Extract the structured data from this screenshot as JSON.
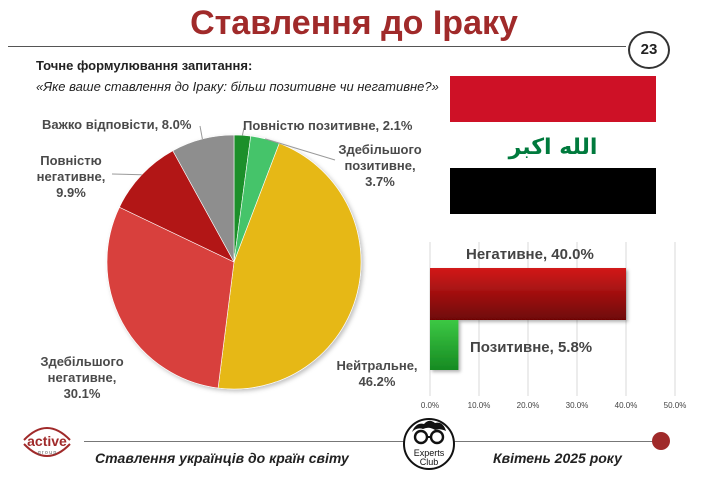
{
  "title": "Ставлення до Іраку",
  "page_number": "23",
  "question": {
    "label": "Точне формулювання запитання:",
    "text": "«Яке ваше ставлення до Іраку: більш позитивне чи негативне?»"
  },
  "flag": {
    "script": "الله اكبر",
    "colors": {
      "top": "#ce1126",
      "middle": "#ffffff",
      "bottom": "#000000",
      "script": "#007a3d"
    }
  },
  "chart_data": [
    {
      "type": "pie",
      "slices": [
        {
          "name": "Повністю позитивне",
          "value": 2.1,
          "label": "Повністю позитивне, 2.1%",
          "color": "#1f8f2b"
        },
        {
          "name": "Здебільшого позитивне",
          "value": 3.7,
          "label_lines": [
            "Здебільшого",
            "позитивне,",
            "3.7%"
          ],
          "color": "#45c46a"
        },
        {
          "name": "Нейтральне",
          "value": 46.2,
          "label_lines": [
            "Нейтральне,",
            "46.2%"
          ],
          "color": "#e6b818"
        },
        {
          "name": "Здебільшого негативне",
          "value": 30.1,
          "label_lines": [
            "Здебільшого",
            "негативне,",
            "30.1%"
          ],
          "color": "#d8403d"
        },
        {
          "name": "Повністю негативне",
          "value": 9.9,
          "label_lines": [
            "Повністю",
            "негативне,",
            "9.9%"
          ],
          "color": "#b21515"
        },
        {
          "name": "Важко відповісти",
          "value": 8.0,
          "label": "Важко відповісти, 8.0%",
          "color": "#8e8e8e"
        }
      ]
    },
    {
      "type": "bar",
      "orientation": "horizontal",
      "categories": [
        "Негативне",
        "Позитивне"
      ],
      "values": [
        40.0,
        5.8
      ],
      "labels": [
        "Негативне, 40.0%",
        "Позитивне, 5.8%"
      ],
      "colors": [
        "#a50d0d",
        "#2fb33a"
      ],
      "xlim": [
        0,
        50
      ],
      "ticks": [
        "0.0%",
        "10.0%",
        "20.0%",
        "30.0%",
        "40.0%",
        "50.0%"
      ]
    }
  ],
  "footer": {
    "survey": "Ставлення українців до країн світу",
    "date": "Квітень 2025 року",
    "logo_active": "active",
    "logo_active_sub": "g r o u p",
    "logo_experts_1": "Experts",
    "logo_experts_2": "Club"
  }
}
